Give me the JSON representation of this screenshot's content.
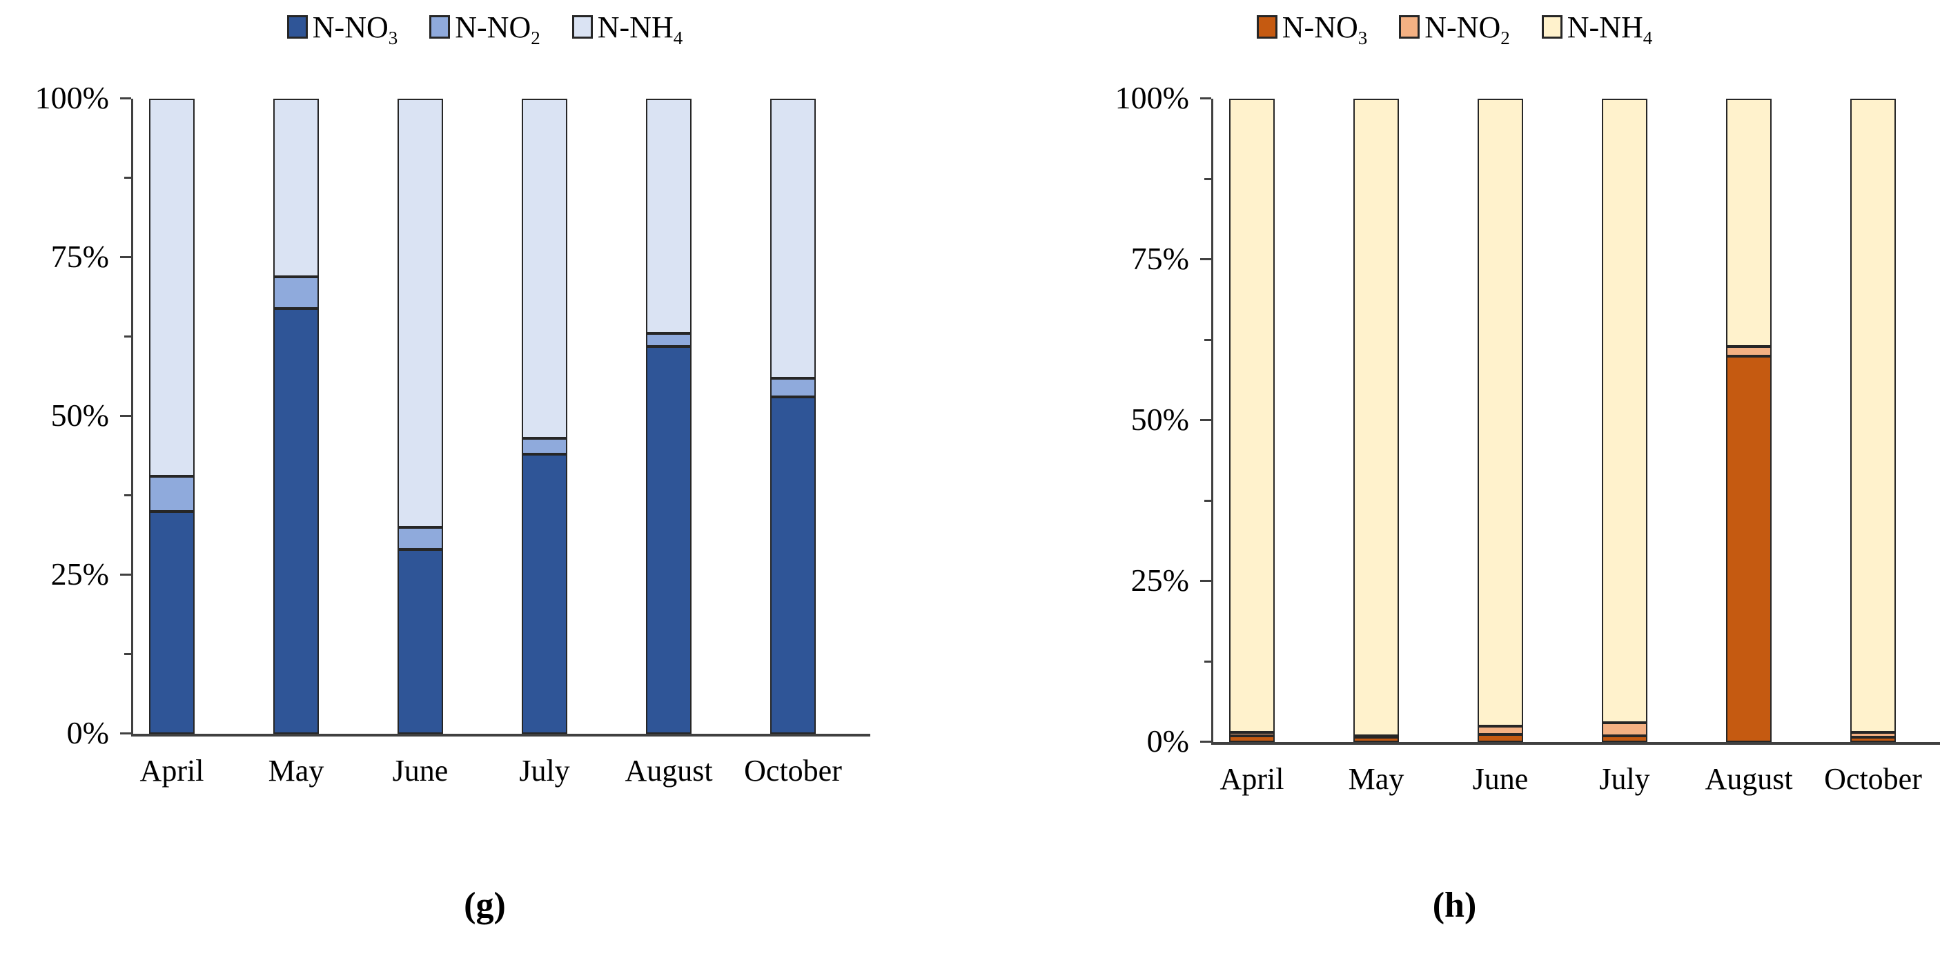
{
  "figure": {
    "background": "#ffffff",
    "text_color": "#000000",
    "axis_color": "#404040",
    "segment_border_color": "#262626"
  },
  "chart_data": [
    {
      "id": "g",
      "type": "bar",
      "variant": "stacked-100-percent",
      "caption": "(g)",
      "title": "",
      "xlabel": "",
      "ylabel": "",
      "ylim": [
        0,
        100
      ],
      "grid": false,
      "legend_position": "top",
      "categories": [
        "April",
        "May",
        "June",
        "July",
        "August",
        "October"
      ],
      "y_major_ticks": [
        0,
        25,
        50,
        75,
        100
      ],
      "y_minor_ticks": [
        12.5,
        37.5,
        62.5,
        87.5
      ],
      "y_tick_labels": [
        "0%",
        "25%",
        "50%",
        "75%",
        "100%"
      ],
      "series": [
        {
          "name": "N-NO3",
          "label_base": "N-NO",
          "label_sub": "3",
          "color": "#2F5597",
          "values": [
            35,
            67,
            29,
            44,
            61,
            53
          ]
        },
        {
          "name": "N-NO2",
          "label_base": "N-NO",
          "label_sub": "2",
          "color": "#8FAADC",
          "values": [
            5.5,
            5,
            3.5,
            2.5,
            2,
            3
          ]
        },
        {
          "name": "N-NH4",
          "label_base": "N-NH",
          "label_sub": "4",
          "color": "#DAE3F3",
          "values": [
            59.5,
            28,
            67.5,
            53.5,
            37,
            44
          ]
        }
      ]
    },
    {
      "id": "h",
      "type": "bar",
      "variant": "stacked-100-percent",
      "caption": "(h)",
      "title": "",
      "xlabel": "",
      "ylabel": "",
      "ylim": [
        0,
        100
      ],
      "grid": false,
      "legend_position": "top",
      "categories": [
        "April",
        "May",
        "June",
        "July",
        "August",
        "October"
      ],
      "y_major_ticks": [
        0,
        25,
        50,
        75,
        100
      ],
      "y_minor_ticks": [
        12.5,
        37.5,
        62.5,
        87.5
      ],
      "y_tick_labels": [
        "0%",
        "25%",
        "50%",
        "75%",
        "100%"
      ],
      "series": [
        {
          "name": "N-NO3",
          "label_base": "N-NO",
          "label_sub": "3",
          "color": "#C55A11",
          "values": [
            1,
            0.7,
            1.2,
            1,
            60,
            0.8
          ]
        },
        {
          "name": "N-NO2",
          "label_base": "N-NO",
          "label_sub": "2",
          "color": "#F4B183",
          "values": [
            0.5,
            0.3,
            1.3,
            2,
            1.5,
            0.7
          ]
        },
        {
          "name": "N-NH4",
          "label_base": "N-NH",
          "label_sub": "4",
          "color": "#FFF2CC",
          "values": [
            98.5,
            99,
            97.5,
            97,
            38.5,
            98.5
          ]
        }
      ]
    }
  ]
}
